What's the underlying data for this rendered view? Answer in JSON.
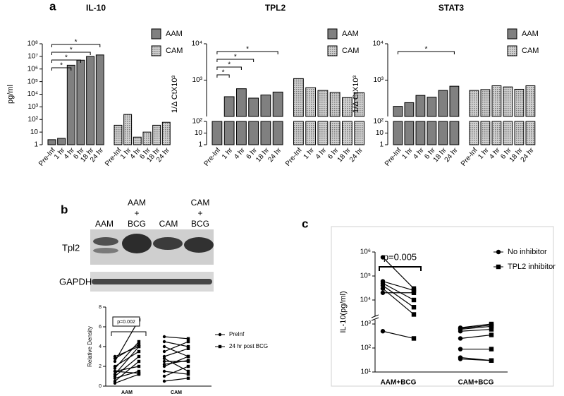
{
  "panel_labels": [
    "a",
    "b",
    "c"
  ],
  "blot": {
    "lanes": [
      [
        "AAM"
      ],
      [
        "AAM",
        "+",
        "BCG"
      ],
      [
        "CAM"
      ],
      [
        "CAM",
        "+",
        "BCG"
      ]
    ],
    "rows": [
      "Tpl2",
      "GAPDH"
    ]
  },
  "chart_data": [
    {
      "type": "bar",
      "title": "IL-10",
      "y_label": "pg/ml",
      "scale": "log",
      "ylim": [
        1,
        100000000
      ],
      "yticks": [
        1,
        10,
        {
          "value": 100,
          "label": "10²"
        },
        {
          "value": 1000,
          "label": "10³"
        },
        {
          "value": 10000,
          "label": "10⁴"
        },
        {
          "value": 100000,
          "label": "10⁵"
        },
        {
          "value": 1000000,
          "label": "10⁶"
        },
        {
          "value": 10000000,
          "label": "10⁷"
        },
        {
          "value": 100000000,
          "label": "10⁸"
        }
      ],
      "categories": [
        "Pre-Inf",
        "1 hr",
        "4 hr",
        "6 hr",
        "18 hr",
        "24 hr"
      ],
      "series": [
        {
          "name": "AAM",
          "color": "#808080",
          "pattern": "solid",
          "values": [
            2.5,
            3.2,
            2000000,
            5000000,
            10000000,
            13000000
          ]
        },
        {
          "name": "CAM",
          "color": "#d0d0d0",
          "pattern": "dotted",
          "values": [
            35,
            250,
            4,
            10,
            35,
            60
          ]
        }
      ],
      "significance": [
        {
          "label": "*",
          "from": 0,
          "to": 5
        },
        {
          "label": "*",
          "from": 0,
          "to": 4
        },
        {
          "label": "*",
          "from": 0,
          "to": 3
        },
        {
          "label": "*",
          "from": 0,
          "to": 2
        }
      ]
    },
    {
      "type": "bar",
      "title": "TPL2",
      "y_label": "1/Δ CtX10³",
      "scale": "log",
      "axis_break": 100,
      "ylim": [
        1,
        10000
      ],
      "yticks": [
        1,
        10,
        {
          "value": 100,
          "label": "10²"
        },
        {
          "value": 1000,
          "label": "10³"
        },
        {
          "value": 10000,
          "label": "10⁴"
        }
      ],
      "categories": [
        "Pre-Inf",
        "1 hr",
        "4 hr",
        "6 hr",
        "18 hr",
        "24 hr"
      ],
      "series": [
        {
          "name": "AAM",
          "color": "#808080",
          "pattern": "solid",
          "values": [
            100,
            350,
            580,
            320,
            390,
            470
          ]
        },
        {
          "name": "CAM",
          "color": "#d0d0d0",
          "pattern": "dotted",
          "values": [
            1100,
            620,
            520,
            460,
            330,
            450
          ]
        }
      ],
      "significance": [
        {
          "label": "*",
          "from": 0,
          "to": 5
        },
        {
          "label": "*",
          "from": 0,
          "to": 3
        },
        {
          "label": "*",
          "from": 0,
          "to": 2
        },
        {
          "label": "*",
          "from": 0,
          "to": 1
        }
      ]
    },
    {
      "type": "bar",
      "title": "STAT3",
      "y_label": "1/Δ CtX10³",
      "scale": "log",
      "axis_break": 100,
      "ylim": [
        1,
        10000
      ],
      "yticks": [
        1,
        10,
        {
          "value": 100,
          "label": "10²"
        },
        {
          "value": 1000,
          "label": "10³"
        },
        {
          "value": 10000,
          "label": "10⁴"
        }
      ],
      "categories": [
        "Pre-Inf",
        "1 hr",
        "4 hr",
        "6 hr",
        "18 hr",
        "24 hr"
      ],
      "series": [
        {
          "name": "AAM",
          "color": "#808080",
          "pattern": "solid",
          "values": [
            190,
            240,
            380,
            340,
            520,
            680
          ]
        },
        {
          "name": "CAM",
          "color": "#d0d0d0",
          "pattern": "dotted",
          "values": [
            520,
            550,
            700,
            650,
            560,
            700
          ]
        }
      ],
      "significance": [
        {
          "label": "*",
          "from": 0,
          "to": 5
        }
      ]
    },
    {
      "type": "paired",
      "y_label": "Relative Density",
      "scale": "linear",
      "ylim": [
        0,
        8
      ],
      "yticks": [
        0,
        2,
        4,
        6,
        8
      ],
      "categories": [
        "AAM",
        "CAM"
      ],
      "series": [
        {
          "name": "PreInf",
          "marker": "circle",
          "color": "#000000",
          "values": [
            [
              0.3,
              0.5,
              0.8,
              1.0,
              1.2,
              1.5,
              1.8,
              2.0,
              2.5,
              2.8,
              3.0,
              1.5
            ],
            [
              0.5,
              1.0,
              1.5,
              2.0,
              2.5,
              2.8,
              3.0,
              3.5,
              4.0,
              4.5,
              5.0,
              2.2
            ]
          ]
        },
        {
          "name": "24 hr post BCG",
          "marker": "square",
          "color": "#000000",
          "values": [
            [
              1.2,
              2.5,
              1.5,
              3.0,
              4.0,
              2.0,
              4.5,
              3.5,
              6.7,
              4.2,
              4.0,
              1.3
            ],
            [
              0.8,
              2.0,
              1.2,
              3.0,
              2.5,
              1.5,
              3.8,
              4.5,
              3.0,
              4.0,
              4.8,
              2.6
            ]
          ]
        }
      ],
      "significance": [
        {
          "label": "p=0.002",
          "category": 0
        }
      ]
    },
    {
      "type": "paired",
      "y_label": "IL-10(pg/ml)",
      "scale": "log",
      "ylim": [
        10,
        1000000
      ],
      "yticks": [
        {
          "value": 10,
          "label": "10¹"
        },
        {
          "value": 100,
          "label": "10²"
        },
        {
          "value": 1000,
          "label": "10³"
        },
        {
          "value": 10000,
          "label": "10⁴"
        },
        {
          "value": 100000,
          "label": "10⁵"
        },
        {
          "value": 1000000,
          "label": "10⁶"
        }
      ],
      "categories": [
        "AAM+BCG",
        "CAM+BCG"
      ],
      "series": [
        {
          "name": "No inhibitor",
          "marker": "circle",
          "color": "#000000",
          "values": [
            [
              600000,
              60000,
              50000,
              40000,
              30000,
              20000,
              500
            ],
            [
              700,
              650,
              600,
              500,
              250,
              90,
              40,
              35
            ]
          ]
        },
        {
          "name": "TPL2 inhibitor",
          "marker": "square",
          "color": "#000000",
          "values": [
            [
              30000,
              25000,
              10000,
              5000,
              2500,
              20000,
              250
            ],
            [
              1000,
              900,
              800,
              600,
              350,
              90,
              30,
              30
            ]
          ]
        }
      ],
      "significance": [
        {
          "label": "p=0.005",
          "category": 0
        }
      ]
    }
  ]
}
